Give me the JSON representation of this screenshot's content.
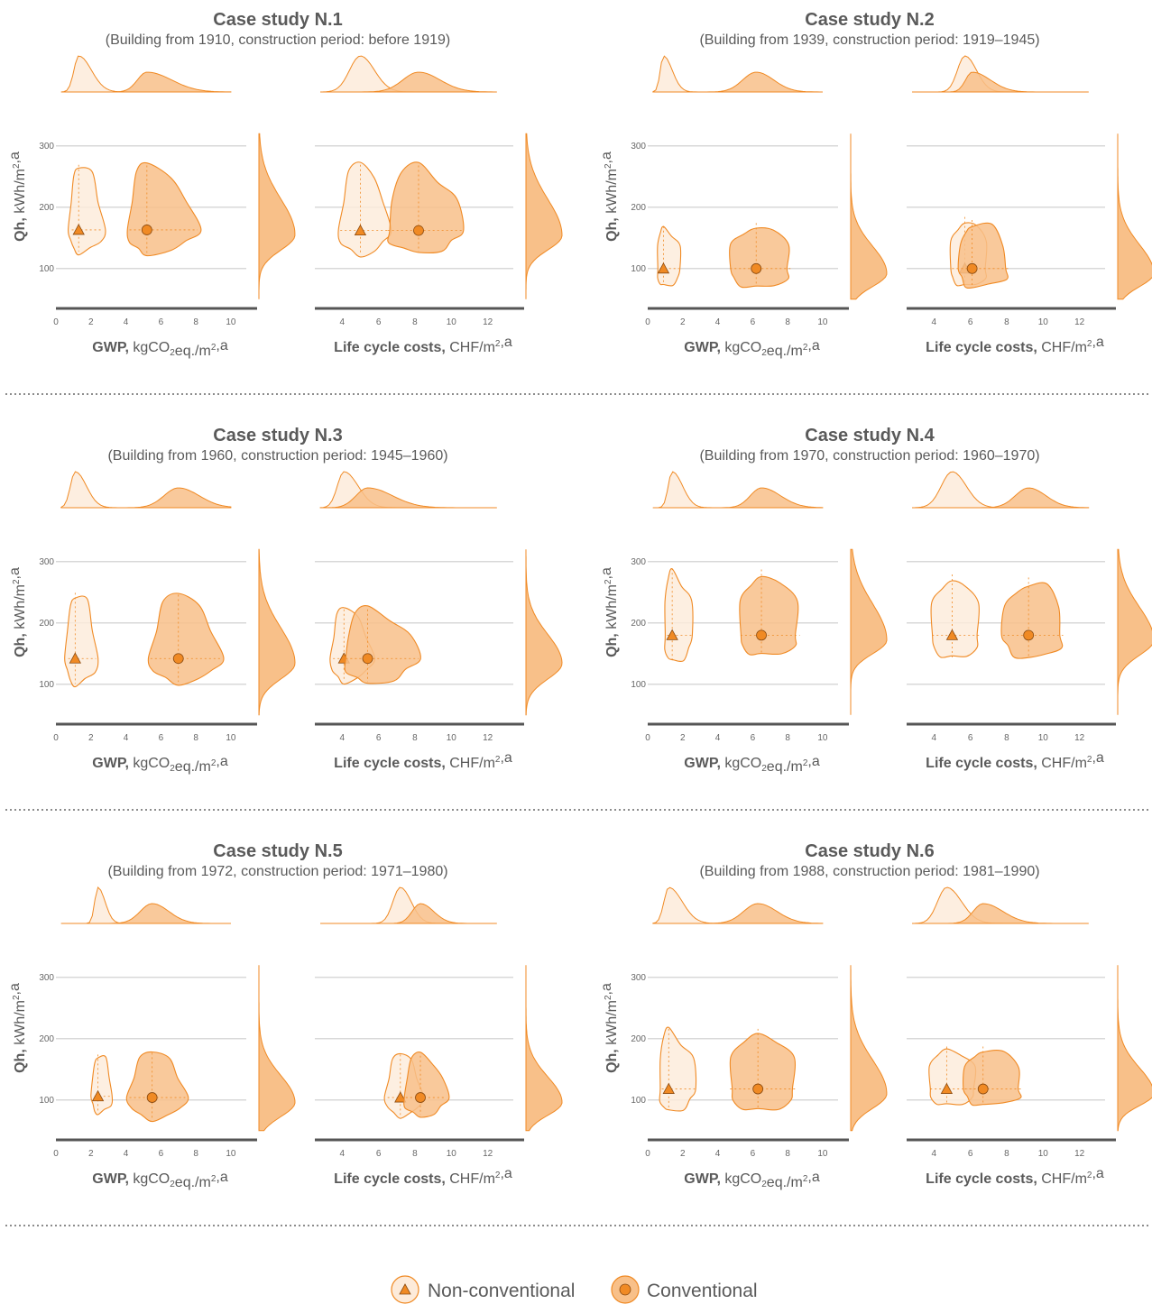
{
  "colors": {
    "accent": "#F08A24",
    "conventional_fill": "#F8C089",
    "non_conventional_fill": "#FDEBDA",
    "grid": "#cccccc",
    "axis": "#555555",
    "text": "#5a5a5a"
  },
  "legend": {
    "non_conventional": {
      "label": "Non-conventional",
      "marker": "triangle-icon"
    },
    "conventional": {
      "label": "Conventional",
      "marker": "circle-icon"
    }
  },
  "chart_data": [
    {
      "type": "scatter",
      "title": "Case study N.1",
      "subtitle": "(Building from 1910, construction period: before 1919)",
      "ylabel": "Qh, kWh/m2,a",
      "ylim": [
        35,
        335
      ],
      "yticks": [
        100,
        200,
        300
      ],
      "panels": [
        {
          "xlabel": "GWP, kgCO2eq./m2,a",
          "xlim": [
            0,
            11.5
          ],
          "xticks": [
            0,
            2,
            4,
            6,
            8,
            10
          ],
          "series": [
            {
              "name": "Non-conventional",
              "marker": "triangle",
              "median": [
                1.3,
                163
              ],
              "x_range": [
                0.7,
                2.9
              ],
              "y_range": [
                122,
                275
              ]
            },
            {
              "name": "Conventional",
              "marker": "circle",
              "median": [
                5.2,
                163
              ],
              "x_range": [
                4.0,
                8.3
              ],
              "y_range": [
                120,
                274
              ]
            }
          ]
        },
        {
          "xlabel": "Life cycle costs, CHF/m2,a",
          "xlim": [
            2.5,
            14
          ],
          "xticks": [
            4,
            6,
            8,
            10,
            12
          ],
          "series": [
            {
              "name": "Non-conventional",
              "marker": "triangle",
              "median": [
                5.0,
                162
              ],
              "x_range": [
                3.7,
                6.7
              ],
              "y_range": [
                118,
                275
              ]
            },
            {
              "name": "Conventional",
              "marker": "circle",
              "median": [
                8.2,
                162
              ],
              "x_range": [
                6.3,
                10.8
              ],
              "y_range": [
                122,
                274
              ]
            }
          ]
        }
      ]
    },
    {
      "type": "scatter",
      "title": "Case study N.2",
      "subtitle": "(Building from 1939, construction period: 1919–1945)",
      "ylabel": "Qh, kWh/m2,a",
      "ylim": [
        35,
        335
      ],
      "yticks": [
        100,
        200,
        300
      ],
      "panels": [
        {
          "xlabel": "GWP, kgCO2eq./m2,a",
          "xlim": [
            0,
            11.5
          ],
          "xticks": [
            0,
            2,
            4,
            6,
            8,
            10
          ],
          "series": [
            {
              "name": "Non-conventional",
              "marker": "triangle",
              "median": [
                0.9,
                100
              ],
              "x_range": [
                0.5,
                2.0
              ],
              "y_range": [
                68,
                175
              ]
            },
            {
              "name": "Conventional",
              "marker": "circle",
              "median": [
                6.2,
                100
              ],
              "x_range": [
                4.5,
                8.4
              ],
              "y_range": [
                65,
                180
              ]
            }
          ]
        },
        {
          "xlabel": "Life cycle costs, CHF/m2,a",
          "xlim": [
            2.5,
            14
          ],
          "xticks": [
            4,
            6,
            8,
            10,
            12
          ],
          "series": [
            {
              "name": "Non-conventional",
              "marker": "triangle",
              "median": [
                5.7,
                100
              ],
              "x_range": [
                4.8,
                7.1
              ],
              "y_range": [
                68,
                190
              ]
            },
            {
              "name": "Conventional",
              "marker": "circle",
              "median": [
                6.1,
                100
              ],
              "x_range": [
                5.3,
                8.3
              ],
              "y_range": [
                65,
                185
              ]
            }
          ]
        }
      ]
    },
    {
      "type": "scatter",
      "title": "Case study N.3",
      "subtitle": "(Building from 1960, construction period: 1945–1960)",
      "ylabel": "Qh, kWh/m2,a",
      "ylim": [
        35,
        335
      ],
      "yticks": [
        100,
        200,
        300
      ],
      "panels": [
        {
          "xlabel": "GWP, kgCO2eq./m2,a",
          "xlim": [
            0,
            11.5
          ],
          "xticks": [
            0,
            2,
            4,
            6,
            8,
            10
          ],
          "series": [
            {
              "name": "Non-conventional",
              "marker": "triangle",
              "median": [
                1.1,
                142
              ],
              "x_range": [
                0.5,
                2.5
              ],
              "y_range": [
                95,
                255
              ]
            },
            {
              "name": "Conventional",
              "marker": "circle",
              "median": [
                7.0,
                142
              ],
              "x_range": [
                5.2,
                9.6
              ],
              "y_range": [
                98,
                252
              ]
            }
          ]
        },
        {
          "xlabel": "Life cycle costs, CHF/m2,a",
          "xlim": [
            2.5,
            14
          ],
          "xticks": [
            4,
            6,
            8,
            10,
            12
          ],
          "series": [
            {
              "name": "Non-conventional",
              "marker": "triangle",
              "median": [
                4.1,
                142
              ],
              "x_range": [
                3.3,
                5.8
              ],
              "y_range": [
                100,
                228
              ]
            },
            {
              "name": "Conventional",
              "marker": "circle",
              "median": [
                5.4,
                142
              ],
              "x_range": [
                4.0,
                8.4
              ],
              "y_range": [
                98,
                228
              ]
            }
          ]
        }
      ]
    },
    {
      "type": "scatter",
      "title": "Case study N.4",
      "subtitle": "(Building from 1970, construction period: 1960–1970)",
      "ylabel": "Qh, kWh/m2,a",
      "ylim": [
        35,
        335
      ],
      "yticks": [
        100,
        200,
        300
      ],
      "panels": [
        {
          "xlabel": "GWP, kgCO2eq./m2,a",
          "xlim": [
            0,
            11.5
          ],
          "xticks": [
            0,
            2,
            4,
            6,
            8,
            10
          ],
          "series": [
            {
              "name": "Non-conventional",
              "marker": "triangle",
              "median": [
                1.4,
                180
              ],
              "x_range": [
                0.9,
                2.7
              ],
              "y_range": [
                132,
                295
              ]
            },
            {
              "name": "Conventional",
              "marker": "circle",
              "median": [
                6.5,
                180
              ],
              "x_range": [
                5.1,
                8.9
              ],
              "y_range": [
                143,
                293
              ]
            }
          ]
        },
        {
          "xlabel": "Life cycle costs, CHF/m2,a",
          "xlim": [
            2.5,
            14
          ],
          "xticks": [
            4,
            6,
            8,
            10,
            12
          ],
          "series": [
            {
              "name": "Non-conventional",
              "marker": "triangle",
              "median": [
                5.0,
                180
              ],
              "x_range": [
                3.7,
                6.7
              ],
              "y_range": [
                138,
                285
              ]
            },
            {
              "name": "Conventional",
              "marker": "circle",
              "median": [
                9.2,
                180
              ],
              "x_range": [
                7.6,
                11.3
              ],
              "y_range": [
                138,
                280
              ]
            }
          ]
        }
      ]
    },
    {
      "type": "scatter",
      "title": "Case study N.5",
      "subtitle": "(Building from 1972, construction period: 1971–1980)",
      "ylabel": "Qh, kWh/m2,a",
      "ylim": [
        35,
        335
      ],
      "yticks": [
        100,
        200,
        300
      ],
      "panels": [
        {
          "xlabel": "GWP, kgCO2eq./m2,a",
          "xlim": [
            0,
            11.5
          ],
          "xticks": [
            0,
            2,
            4,
            6,
            8,
            10
          ],
          "series": [
            {
              "name": "Non-conventional",
              "marker": "triangle",
              "median": [
                2.4,
                106
              ],
              "x_range": [
                2.0,
                3.3
              ],
              "y_range": [
                75,
                180
              ]
            },
            {
              "name": "Conventional",
              "marker": "circle",
              "median": [
                5.5,
                104
              ],
              "x_range": [
                4.0,
                7.6
              ],
              "y_range": [
                65,
                183
              ]
            }
          ]
        },
        {
          "xlabel": "Life cycle costs, CHF/m2,a",
          "xlim": [
            2.5,
            14
          ],
          "xticks": [
            4,
            6,
            8,
            10,
            12
          ],
          "series": [
            {
              "name": "Non-conventional",
              "marker": "triangle",
              "median": [
                7.2,
                104
              ],
              "x_range": [
                6.3,
                8.5
              ],
              "y_range": [
                70,
                180
              ]
            },
            {
              "name": "Conventional",
              "marker": "circle",
              "median": [
                8.3,
                104
              ],
              "x_range": [
                7.3,
                9.9
              ],
              "y_range": [
                70,
                178
              ]
            }
          ]
        }
      ]
    },
    {
      "type": "scatter",
      "title": "Case study N.6",
      "subtitle": "(Building from 1988, construction period: 1981–1990)",
      "ylabel": "Qh, kWh/m2,a",
      "ylim": [
        35,
        335
      ],
      "yticks": [
        100,
        200,
        300
      ],
      "panels": [
        {
          "xlabel": "GWP, kgCO2eq./m2,a",
          "xlim": [
            0,
            11.5
          ],
          "xticks": [
            0,
            2,
            4,
            6,
            8,
            10
          ],
          "series": [
            {
              "name": "Non-conventional",
              "marker": "triangle",
              "median": [
                1.2,
                118
              ],
              "x_range": [
                0.6,
                2.9
              ],
              "y_range": [
                78,
                222
              ]
            },
            {
              "name": "Conventional",
              "marker": "circle",
              "median": [
                6.3,
                118
              ],
              "x_range": [
                4.5,
                8.7
              ],
              "y_range": [
                78,
                222
              ]
            }
          ]
        },
        {
          "xlabel": "Life cycle costs, CHF/m2,a",
          "xlim": [
            2.5,
            14
          ],
          "xticks": [
            4,
            6,
            8,
            10,
            12
          ],
          "series": [
            {
              "name": "Non-conventional",
              "marker": "triangle",
              "median": [
                4.7,
                118
              ],
              "x_range": [
                3.6,
                6.5
              ],
              "y_range": [
                88,
                193
              ]
            },
            {
              "name": "Conventional",
              "marker": "circle",
              "median": [
                6.7,
                118
              ],
              "x_range": [
                5.5,
                9.1
              ],
              "y_range": [
                88,
                193
              ]
            }
          ]
        }
      ]
    }
  ]
}
